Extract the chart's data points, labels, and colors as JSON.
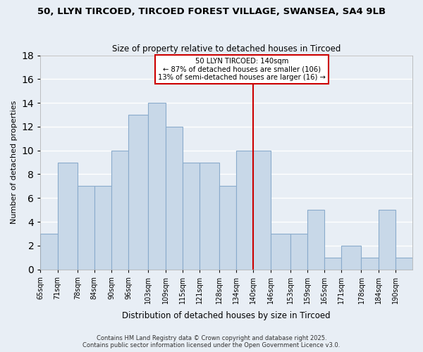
{
  "title": "50, LLYN TIRCOED, TIRCOED FOREST VILLAGE, SWANSEA, SA4 9LB",
  "subtitle": "Size of property relative to detached houses in Tircoed",
  "xlabel": "Distribution of detached houses by size in Tircoed",
  "ylabel": "Number of detached properties",
  "categories": [
    "65sqm",
    "71sqm",
    "78sqm",
    "84sqm",
    "90sqm",
    "96sqm",
    "103sqm",
    "109sqm",
    "115sqm",
    "121sqm",
    "128sqm",
    "134sqm",
    "140sqm",
    "146sqm",
    "153sqm",
    "159sqm",
    "165sqm",
    "171sqm",
    "178sqm",
    "184sqm",
    "190sqm"
  ],
  "bins": [
    65,
    71,
    78,
    84,
    90,
    96,
    103,
    109,
    115,
    121,
    128,
    134,
    140,
    146,
    153,
    159,
    165,
    171,
    178,
    184,
    190,
    196
  ],
  "counts": [
    3,
    9,
    7,
    7,
    10,
    13,
    14,
    12,
    9,
    9,
    7,
    10,
    10,
    3,
    3,
    5,
    1,
    2,
    1,
    5,
    1
  ],
  "bar_color": "#c8d8e8",
  "bar_edge_color": "#8aabcc",
  "vline_x": 140,
  "vline_color": "#cc0000",
  "annotation_title": "50 LLYN TIRCOED: 140sqm",
  "annotation_line1": "← 87% of detached houses are smaller (106)",
  "annotation_line2": "13% of semi-detached houses are larger (16) →",
  "annotation_box_color": "#cc0000",
  "ylim": [
    0,
    18
  ],
  "yticks": [
    0,
    2,
    4,
    6,
    8,
    10,
    12,
    14,
    16,
    18
  ],
  "background_color": "#e8eef5",
  "grid_color": "#ffffff",
  "footer1": "Contains HM Land Registry data © Crown copyright and database right 2025.",
  "footer2": "Contains public sector information licensed under the Open Government Licence v3.0."
}
